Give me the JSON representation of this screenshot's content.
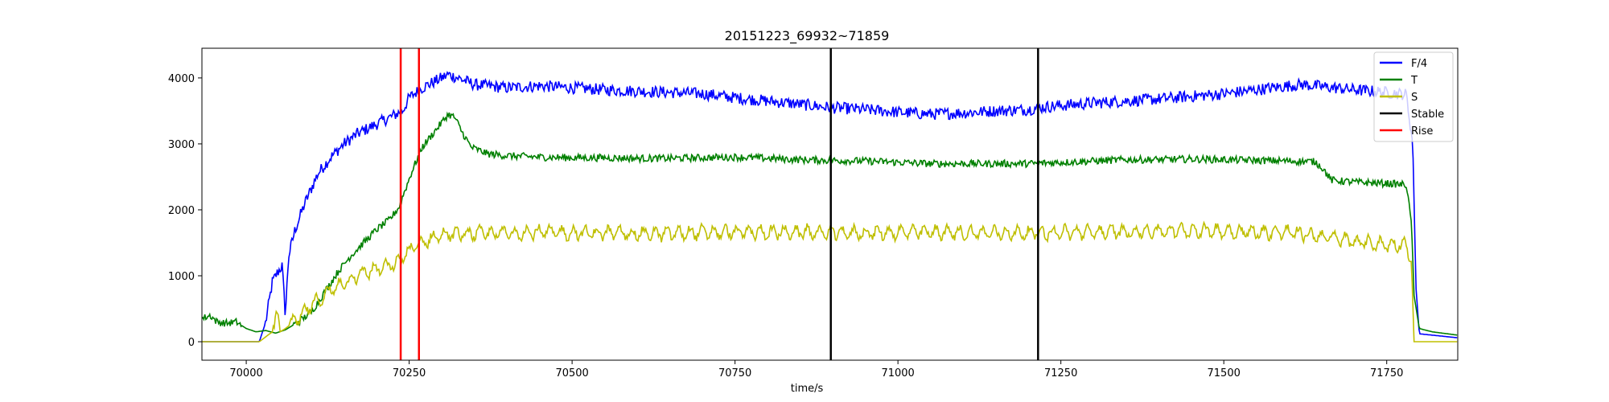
{
  "chart_data": {
    "type": "line",
    "title": "20151223_69932~71859",
    "xlabel": "time/s",
    "ylabel": "",
    "xlim": [
      69932,
      71859
    ],
    "ylim": [
      -280,
      4450
    ],
    "x_ticks": [
      70000,
      70250,
      70500,
      70750,
      71000,
      71250,
      71500,
      71750
    ],
    "x_tick_labels": [
      "70000",
      "70250",
      "70500",
      "70750",
      "71000",
      "71250",
      "71500",
      "71750"
    ],
    "y_ticks": [
      0,
      1000,
      2000,
      3000,
      4000
    ],
    "y_tick_labels": [
      "0",
      "1000",
      "2000",
      "3000",
      "4000"
    ],
    "grid": false,
    "legend_position": "top-right",
    "series": [
      {
        "name": "F/4",
        "color": "#0000ff",
        "points": [
          [
            69932,
            0
          ],
          [
            70020,
            0
          ],
          [
            70030,
            300
          ],
          [
            70040,
            900
          ],
          [
            70048,
            1050
          ],
          [
            70055,
            1150
          ],
          [
            70060,
            400
          ],
          [
            70065,
            1300
          ],
          [
            70075,
            1700
          ],
          [
            70090,
            2100
          ],
          [
            70110,
            2550
          ],
          [
            70130,
            2800
          ],
          [
            70150,
            3000
          ],
          [
            70170,
            3150
          ],
          [
            70190,
            3250
          ],
          [
            70210,
            3350
          ],
          [
            70230,
            3450
          ],
          [
            70240,
            3500
          ],
          [
            70250,
            3700
          ],
          [
            70270,
            3850
          ],
          [
            70290,
            3950
          ],
          [
            70310,
            4050
          ],
          [
            70325,
            4000
          ],
          [
            70350,
            3900
          ],
          [
            70400,
            3850
          ],
          [
            70450,
            3880
          ],
          [
            70500,
            3850
          ],
          [
            70550,
            3820
          ],
          [
            70600,
            3800
          ],
          [
            70650,
            3780
          ],
          [
            70700,
            3760
          ],
          [
            70750,
            3700
          ],
          [
            70800,
            3650
          ],
          [
            70850,
            3600
          ],
          [
            70897,
            3550
          ],
          [
            70950,
            3520
          ],
          [
            71000,
            3480
          ],
          [
            71050,
            3450
          ],
          [
            71100,
            3470
          ],
          [
            71150,
            3500
          ],
          [
            71200,
            3520
          ],
          [
            71215,
            3550
          ],
          [
            71250,
            3580
          ],
          [
            71300,
            3620
          ],
          [
            71350,
            3650
          ],
          [
            71400,
            3680
          ],
          [
            71450,
            3720
          ],
          [
            71500,
            3760
          ],
          [
            71550,
            3820
          ],
          [
            71600,
            3880
          ],
          [
            71620,
            3900
          ],
          [
            71650,
            3870
          ],
          [
            71700,
            3820
          ],
          [
            71750,
            3780
          ],
          [
            71780,
            3750
          ],
          [
            71790,
            3000
          ],
          [
            71795,
            800
          ],
          [
            71800,
            120
          ],
          [
            71859,
            60
          ]
        ]
      },
      {
        "name": "T",
        "color": "#008000",
        "points": [
          [
            69932,
            350
          ],
          [
            69945,
            400
          ],
          [
            69955,
            300
          ],
          [
            69970,
            280
          ],
          [
            69985,
            300
          ],
          [
            70000,
            200
          ],
          [
            70015,
            150
          ],
          [
            70030,
            170
          ],
          [
            70045,
            130
          ],
          [
            70060,
            180
          ],
          [
            70080,
            300
          ],
          [
            70100,
            450
          ],
          [
            70120,
            750
          ],
          [
            70140,
            1050
          ],
          [
            70160,
            1300
          ],
          [
            70180,
            1500
          ],
          [
            70200,
            1700
          ],
          [
            70220,
            1850
          ],
          [
            70235,
            2050
          ],
          [
            70240,
            2200
          ],
          [
            70255,
            2600
          ],
          [
            70270,
            2950
          ],
          [
            70290,
            3200
          ],
          [
            70310,
            3450
          ],
          [
            70320,
            3400
          ],
          [
            70330,
            3200
          ],
          [
            70345,
            2950
          ],
          [
            70370,
            2850
          ],
          [
            70400,
            2820
          ],
          [
            70450,
            2800
          ],
          [
            70500,
            2790
          ],
          [
            70550,
            2790
          ],
          [
            70600,
            2780
          ],
          [
            70650,
            2780
          ],
          [
            70700,
            2790
          ],
          [
            70750,
            2800
          ],
          [
            70800,
            2780
          ],
          [
            70850,
            2760
          ],
          [
            70897,
            2750
          ],
          [
            70950,
            2740
          ],
          [
            71000,
            2720
          ],
          [
            71050,
            2700
          ],
          [
            71100,
            2700
          ],
          [
            71150,
            2700
          ],
          [
            71200,
            2700
          ],
          [
            71250,
            2720
          ],
          [
            71300,
            2740
          ],
          [
            71350,
            2760
          ],
          [
            71400,
            2760
          ],
          [
            71450,
            2770
          ],
          [
            71500,
            2760
          ],
          [
            71550,
            2750
          ],
          [
            71600,
            2740
          ],
          [
            71640,
            2730
          ],
          [
            71650,
            2650
          ],
          [
            71665,
            2450
          ],
          [
            71700,
            2420
          ],
          [
            71750,
            2400
          ],
          [
            71780,
            2380
          ],
          [
            71788,
            1800
          ],
          [
            71792,
            700
          ],
          [
            71800,
            200
          ],
          [
            71820,
            150
          ],
          [
            71859,
            100
          ]
        ]
      },
      {
        "name": "S",
        "color": "#bfbf00",
        "points": [
          [
            69932,
            0
          ],
          [
            70020,
            0
          ],
          [
            70040,
            150
          ],
          [
            70047,
            550
          ],
          [
            70052,
            150
          ],
          [
            70060,
            200
          ],
          [
            70080,
            350
          ],
          [
            70100,
            550
          ],
          [
            70120,
            700
          ],
          [
            70140,
            850
          ],
          [
            70160,
            950
          ],
          [
            70180,
            1050
          ],
          [
            70200,
            1100
          ],
          [
            70220,
            1150
          ],
          [
            70235,
            1200
          ],
          [
            70240,
            1300
          ],
          [
            70260,
            1450
          ],
          [
            70280,
            1550
          ],
          [
            70300,
            1620
          ],
          [
            70350,
            1640
          ],
          [
            70400,
            1650
          ],
          [
            70450,
            1660
          ],
          [
            70500,
            1650
          ],
          [
            70550,
            1650
          ],
          [
            70600,
            1640
          ],
          [
            70650,
            1640
          ],
          [
            70700,
            1660
          ],
          [
            70750,
            1660
          ],
          [
            70800,
            1660
          ],
          [
            70850,
            1660
          ],
          [
            70897,
            1650
          ],
          [
            70950,
            1650
          ],
          [
            71000,
            1660
          ],
          [
            71050,
            1660
          ],
          [
            71100,
            1650
          ],
          [
            71150,
            1650
          ],
          [
            71200,
            1650
          ],
          [
            71250,
            1660
          ],
          [
            71300,
            1660
          ],
          [
            71350,
            1670
          ],
          [
            71400,
            1680
          ],
          [
            71450,
            1690
          ],
          [
            71500,
            1680
          ],
          [
            71550,
            1660
          ],
          [
            71600,
            1660
          ],
          [
            71650,
            1600
          ],
          [
            71700,
            1520
          ],
          [
            71750,
            1470
          ],
          [
            71780,
            1480
          ],
          [
            71788,
            1200
          ],
          [
            71792,
            0
          ],
          [
            71859,
            0
          ]
        ]
      }
    ],
    "vlines": [
      {
        "name": "Stable",
        "color": "#000000",
        "x": [
          70897,
          71215
        ]
      },
      {
        "name": "Rise",
        "color": "#ff0000",
        "x": [
          70237,
          70265
        ]
      }
    ],
    "legend": [
      {
        "label": "F/4",
        "color": "#0000ff"
      },
      {
        "label": "T",
        "color": "#008000"
      },
      {
        "label": "S",
        "color": "#bfbf00"
      },
      {
        "label": "Stable",
        "color": "#000000"
      },
      {
        "label": "Rise",
        "color": "#ff0000"
      }
    ]
  }
}
